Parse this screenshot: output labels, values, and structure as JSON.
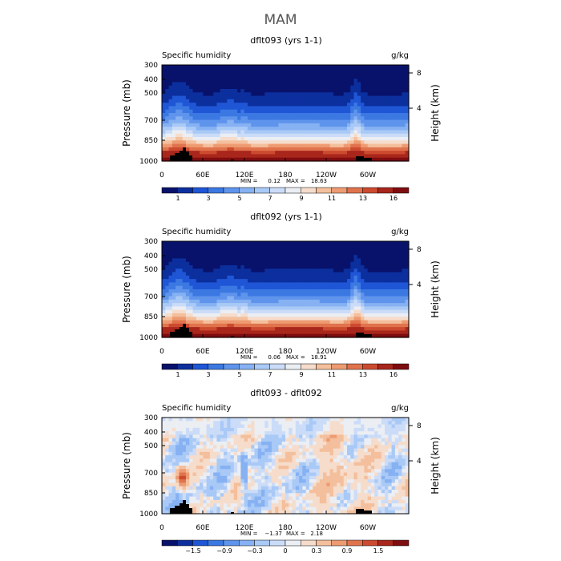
{
  "figure": {
    "title": "MAM"
  },
  "panels": [
    {
      "title": "dflt093 (yrs 1-1)",
      "left_label": "Specific humidity",
      "right_label": "g/kg",
      "stats": {
        "min_label": "MIN =",
        "min": "0.12",
        "max_label": "MAX =",
        "max": "18.63"
      },
      "colorbar_labels": [
        "1",
        "3",
        "5",
        "7",
        "9",
        "11",
        "13",
        "16"
      ]
    },
    {
      "title": "dflt092 (yrs 1-1)",
      "left_label": "Specific humidity",
      "right_label": "g/kg",
      "stats": {
        "min_label": "MIN =",
        "min": "0.06",
        "max_label": "MAX =",
        "max": "18.91"
      },
      "colorbar_labels": [
        "1",
        "3",
        "5",
        "7",
        "9",
        "11",
        "13",
        "16"
      ]
    },
    {
      "title": "dflt093 - dflt092",
      "left_label": "Specific humidity",
      "right_label": "g/kg",
      "stats": {
        "min_label": "MIN =",
        "min": "−1.37",
        "max_label": "MAX =",
        "max": "2.18"
      },
      "colorbar_labels": [
        "−1.5",
        "−0.9",
        "−0.3",
        "0",
        "0.3",
        "0.9",
        "1.5"
      ]
    }
  ],
  "axes": {
    "y_label": "Pressure (mb)",
    "y_right_label": "Height (km)",
    "y_ticks": [
      "300",
      "400",
      "500",
      "700",
      "850",
      "1000"
    ],
    "y_right_ticks": [
      "8",
      "4"
    ],
    "x_ticks": [
      "0",
      "60E",
      "120E",
      "180",
      "120W",
      "60W"
    ]
  },
  "chart_data": [
    {
      "type": "heatmap",
      "title": "dflt093 (yrs 1-1)",
      "variable": "Specific humidity",
      "units": "g/kg",
      "x_range_deg": [
        0,
        360
      ],
      "y_range_mb": [
        1000,
        300
      ],
      "x_ticks_deg": [
        0,
        60,
        120,
        180,
        240,
        300
      ],
      "y_ticks_mb": [
        300,
        400,
        500,
        700,
        850,
        1000
      ],
      "height_ticks_km": [
        8,
        4
      ],
      "min": 0.12,
      "max": 18.63,
      "levels": [
        1,
        2,
        3,
        4,
        5,
        6,
        7,
        8,
        9,
        10,
        11,
        12,
        13,
        14,
        16
      ],
      "colors": [
        "#08126b",
        "#0c2f9e",
        "#1f56d6",
        "#3c78e2",
        "#5f94ec",
        "#86b1f2",
        "#a9c9f6",
        "#cbdcf8",
        "#ebeef3",
        "#f6dccb",
        "#f4bf9c",
        "#ee9b72",
        "#e0734d",
        "#cc4a2f",
        "#a8261b",
        "#7e0d10"
      ]
    },
    {
      "type": "heatmap",
      "title": "dflt092 (yrs 1-1)",
      "variable": "Specific humidity",
      "units": "g/kg",
      "x_range_deg": [
        0,
        360
      ],
      "y_range_mb": [
        1000,
        300
      ],
      "x_ticks_deg": [
        0,
        60,
        120,
        180,
        240,
        300
      ],
      "y_ticks_mb": [
        300,
        400,
        500,
        700,
        850,
        1000
      ],
      "height_ticks_km": [
        8,
        4
      ],
      "min": 0.06,
      "max": 18.91,
      "levels": [
        1,
        2,
        3,
        4,
        5,
        6,
        7,
        8,
        9,
        10,
        11,
        12,
        13,
        14,
        16
      ],
      "colors": [
        "#08126b",
        "#0c2f9e",
        "#1f56d6",
        "#3c78e2",
        "#5f94ec",
        "#86b1f2",
        "#a9c9f6",
        "#cbdcf8",
        "#ebeef3",
        "#f6dccb",
        "#f4bf9c",
        "#ee9b72",
        "#e0734d",
        "#cc4a2f",
        "#a8261b",
        "#7e0d10"
      ]
    },
    {
      "type": "heatmap",
      "title": "dflt093 - dflt092",
      "variable": "Specific humidity",
      "units": "g/kg",
      "x_range_deg": [
        0,
        360
      ],
      "y_range_mb": [
        1000,
        300
      ],
      "x_ticks_deg": [
        0,
        60,
        120,
        180,
        240,
        300
      ],
      "y_ticks_mb": [
        300,
        400,
        500,
        700,
        850,
        1000
      ],
      "height_ticks_km": [
        8,
        4
      ],
      "min": -1.37,
      "max": 2.18,
      "levels": [
        -1.8,
        -1.5,
        -1.2,
        -0.9,
        -0.6,
        -0.3,
        -0.1,
        0,
        0.1,
        0.3,
        0.6,
        0.9,
        1.2,
        1.5,
        1.8
      ],
      "colors": [
        "#08126b",
        "#0c2f9e",
        "#1f56d6",
        "#3c78e2",
        "#5f94ec",
        "#86b1f2",
        "#a9c9f6",
        "#cbdcf8",
        "#ebeef3",
        "#f6dccb",
        "#f4bf9c",
        "#ee9b72",
        "#e0734d",
        "#cc4a2f",
        "#a8261b",
        "#7e0d10"
      ]
    }
  ]
}
